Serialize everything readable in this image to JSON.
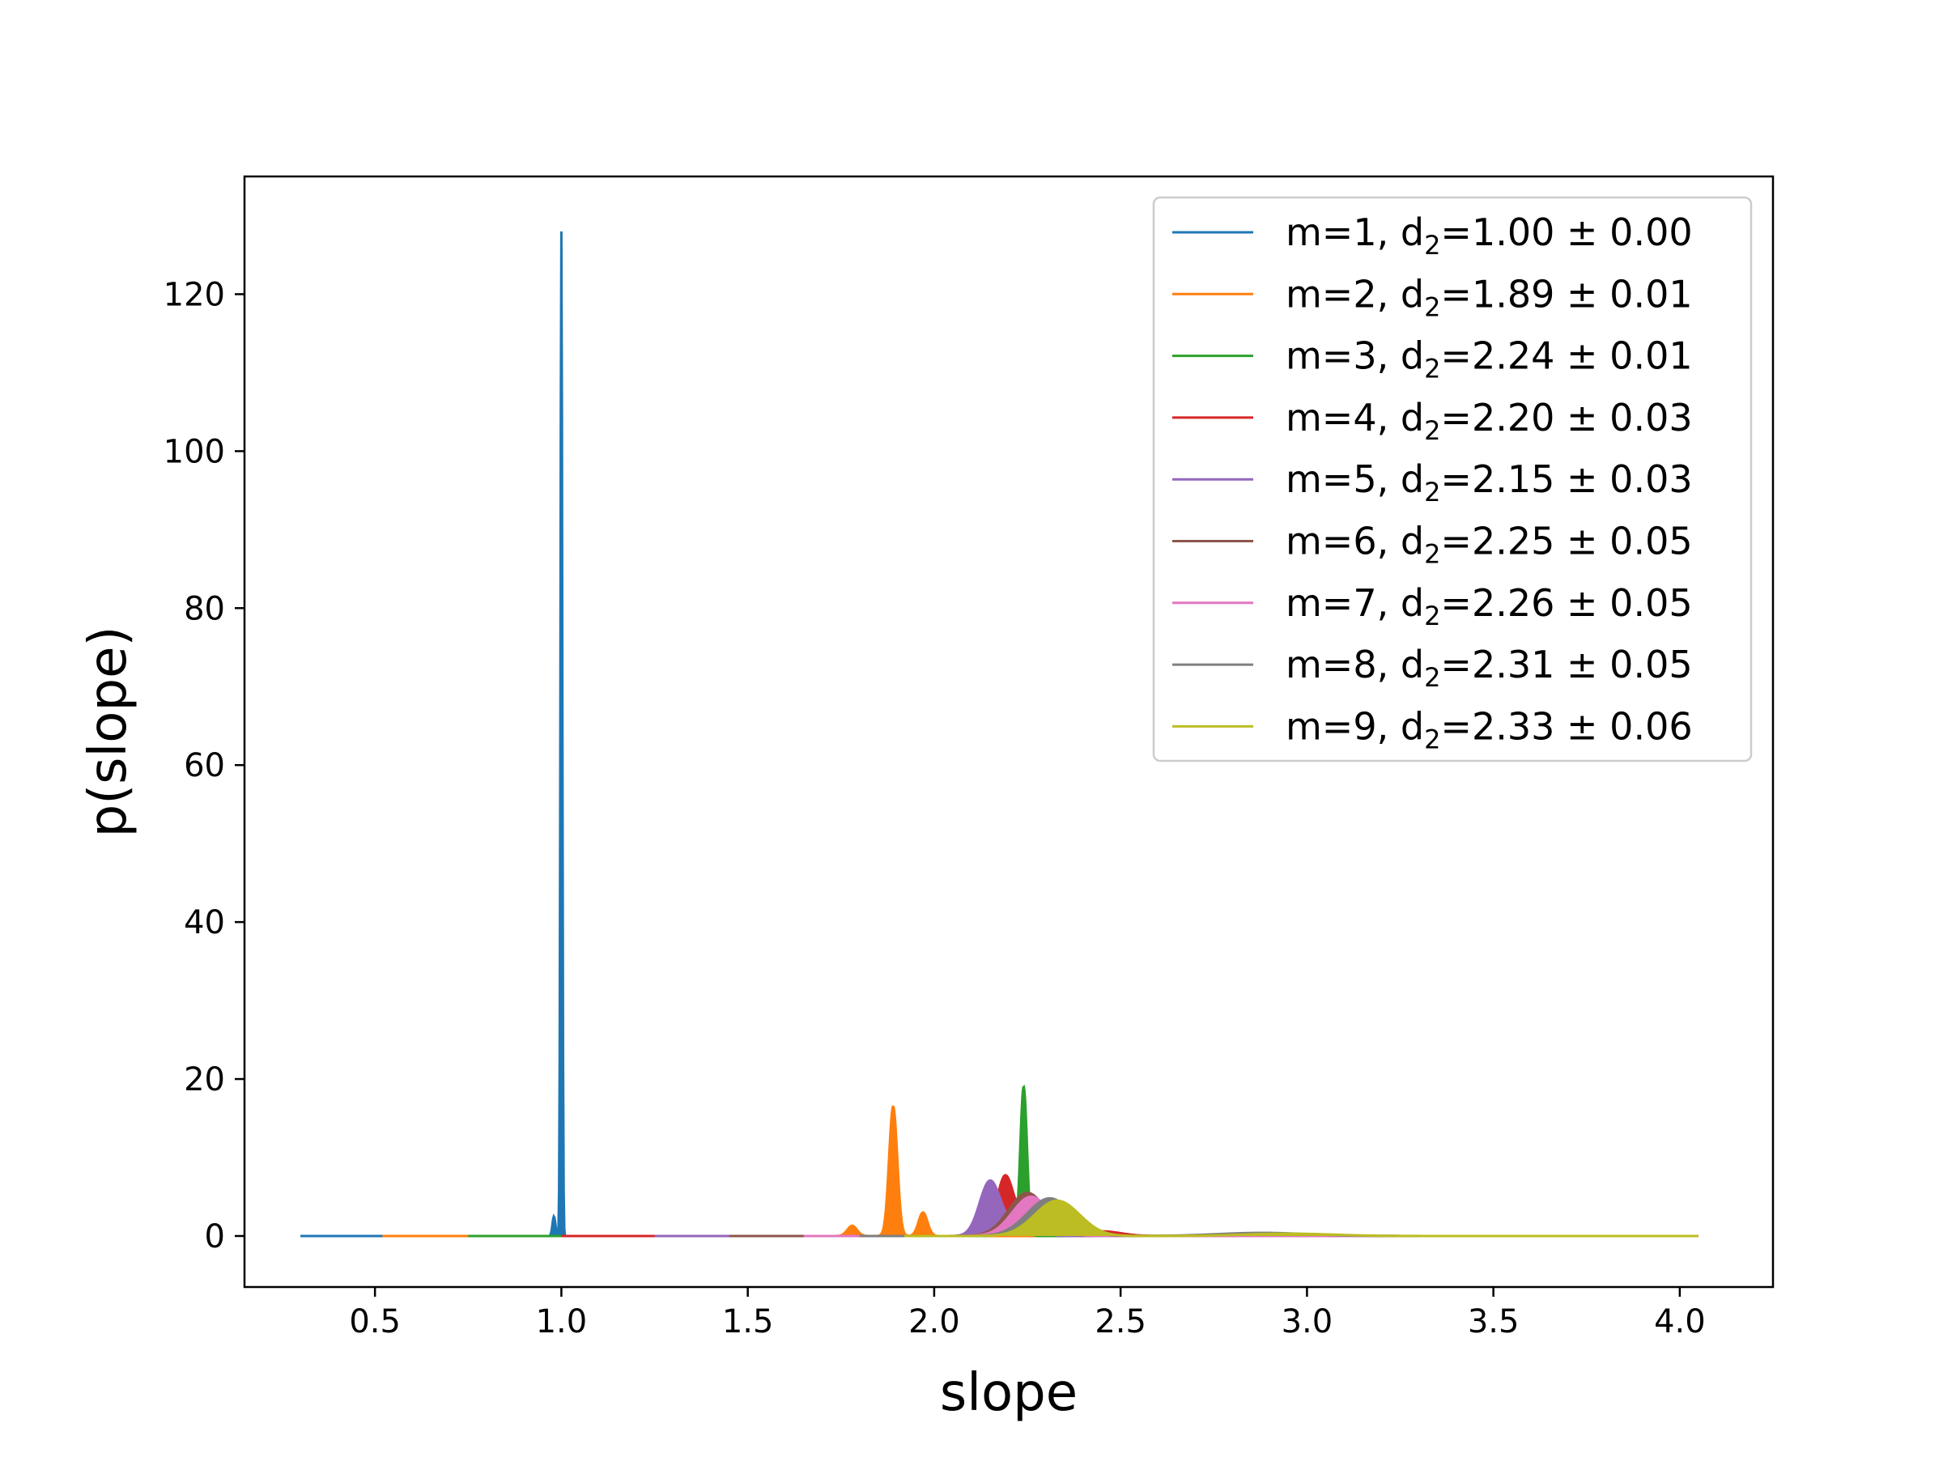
{
  "chart_data": {
    "type": "area",
    "title": "",
    "xlabel": "slope",
    "ylabel": "p(slope)",
    "xlim": [
      0.15,
      4.25
    ],
    "ylim": [
      -6.5,
      135
    ],
    "xticks": [
      {
        "value": 0.5,
        "label": "0.5"
      },
      {
        "value": 1.0,
        "label": "1.0"
      },
      {
        "value": 1.5,
        "label": "1.5"
      },
      {
        "value": 2.0,
        "label": "2.0"
      },
      {
        "value": 2.5,
        "label": "2.5"
      },
      {
        "value": 3.0,
        "label": "3.0"
      },
      {
        "value": 3.5,
        "label": "3.5"
      },
      {
        "value": 4.0,
        "label": "4.0"
      }
    ],
    "yticks": [
      {
        "value": 0,
        "label": "0"
      },
      {
        "value": 20,
        "label": "20"
      },
      {
        "value": 40,
        "label": "40"
      },
      {
        "value": 60,
        "label": "60"
      },
      {
        "value": 80,
        "label": "80"
      },
      {
        "value": 100,
        "label": "100"
      },
      {
        "value": 120,
        "label": "120"
      }
    ],
    "grid": false,
    "legend_position": "top-right",
    "series": [
      {
        "name": "m=1, d2=1.00 ± 0.00",
        "label_prefix": "m=1, d",
        "label_sub": "2",
        "label_suffix": "=1.00 ± 0.00",
        "color": "#1f77b4",
        "range": [
          0.3,
          4.05
        ],
        "peaks": [
          {
            "x": 1.0,
            "h": 128,
            "w": 0.0025
          },
          {
            "x": 0.98,
            "h": 2.5,
            "w": 0.004
          }
        ]
      },
      {
        "name": "m=2, d2=1.89 ± 0.01",
        "label_prefix": "m=2, d",
        "label_sub": "2",
        "label_suffix": "=1.89 ± 0.01",
        "color": "#ff7f0e",
        "range": [
          0.52,
          4.05
        ],
        "peaks": [
          {
            "x": 1.89,
            "h": 16.5,
            "w": 0.011
          },
          {
            "x": 1.97,
            "h": 3.0,
            "w": 0.012
          },
          {
            "x": 1.78,
            "h": 1.3,
            "w": 0.013
          }
        ]
      },
      {
        "name": "m=3, d2=2.24 ± 0.01",
        "label_prefix": "m=3, d",
        "label_sub": "2",
        "label_suffix": "=2.24 ± 0.01",
        "color": "#2ca02c",
        "range": [
          0.75,
          4.05
        ],
        "peaks": [
          {
            "x": 2.24,
            "h": 19.0,
            "w": 0.009
          },
          {
            "x": 2.19,
            "h": 2.0,
            "w": 0.015
          }
        ]
      },
      {
        "name": "m=4, d2=2.20 ± 0.03",
        "label_prefix": "m=4, d",
        "label_sub": "2",
        "label_suffix": "=2.20 ± 0.03",
        "color": "#d62728",
        "range": [
          1.0,
          4.05
        ],
        "peaks": [
          {
            "x": 2.19,
            "h": 7.5,
            "w": 0.022
          },
          {
            "x": 2.26,
            "h": 3.5,
            "w": 0.03
          },
          {
            "x": 2.45,
            "h": 0.6,
            "w": 0.05
          }
        ]
      },
      {
        "name": "m=5, d2=2.15 ± 0.03",
        "label_prefix": "m=5, d",
        "label_sub": "2",
        "label_suffix": "=2.15 ± 0.03",
        "color": "#9467bd",
        "range": [
          1.25,
          4.05
        ],
        "peaks": [
          {
            "x": 2.15,
            "h": 7.0,
            "w": 0.028
          },
          {
            "x": 2.24,
            "h": 2.0,
            "w": 0.035
          }
        ]
      },
      {
        "name": "m=6, d2=2.25 ± 0.05",
        "label_prefix": "m=6, d",
        "label_sub": "2",
        "label_suffix": "=2.25 ± 0.05",
        "color": "#8c564b",
        "range": [
          1.45,
          4.05
        ],
        "peaks": [
          {
            "x": 2.25,
            "h": 5.5,
            "w": 0.05
          },
          {
            "x": 2.9,
            "h": 0.3,
            "w": 0.12
          }
        ]
      },
      {
        "name": "m=7, d2=2.26 ± 0.05",
        "label_prefix": "m=7, d",
        "label_sub": "2",
        "label_suffix": "=2.26 ± 0.05",
        "color": "#e377c2",
        "range": [
          1.65,
          4.05
        ],
        "peaks": [
          {
            "x": 2.26,
            "h": 5.0,
            "w": 0.05
          }
        ]
      },
      {
        "name": "m=8, d2=2.31 ± 0.05",
        "label_prefix": "m=8, d",
        "label_sub": "2",
        "label_suffix": "=2.31 ± 0.05",
        "color": "#7f7f7f",
        "range": [
          1.8,
          4.05
        ],
        "peaks": [
          {
            "x": 2.31,
            "h": 4.8,
            "w": 0.06
          },
          {
            "x": 2.88,
            "h": 0.4,
            "w": 0.12
          }
        ]
      },
      {
        "name": "m=9, d2=2.33 ± 0.06",
        "label_prefix": "m=9, d",
        "label_sub": "2",
        "label_suffix": "=2.33 ± 0.06",
        "color": "#bcbd22",
        "range": [
          1.92,
          4.05
        ],
        "peaks": [
          {
            "x": 2.33,
            "h": 4.5,
            "w": 0.06
          },
          {
            "x": 2.95,
            "h": 0.3,
            "w": 0.12
          }
        ]
      }
    ]
  }
}
